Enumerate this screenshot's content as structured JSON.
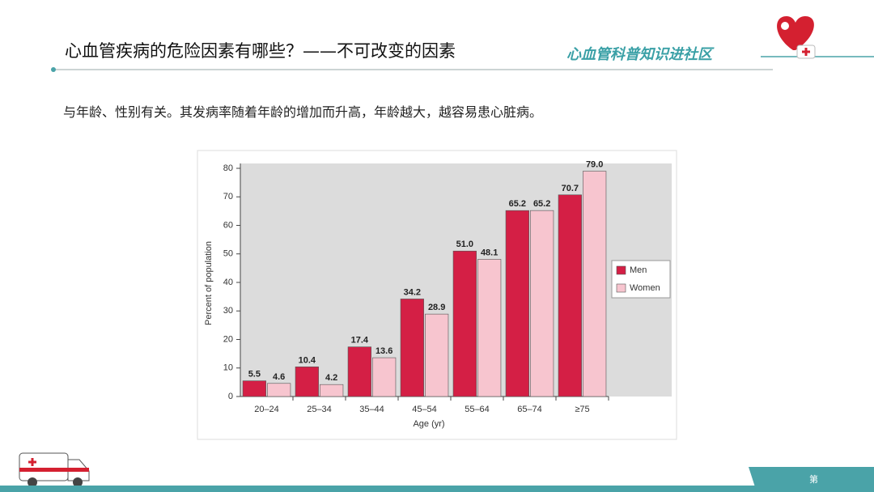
{
  "slide": {
    "title": "心血管疾病的危险因素有哪些？——不可改变的因素",
    "banner": "心血管科普知识进社区",
    "text": "与年龄、性别有关。其发病率随着年龄的增加而升高，年龄越大，越容易患心脏病。",
    "footer": "第"
  },
  "chart_data": {
    "type": "bar",
    "x_label": "Age (yr)",
    "y_label": "Percent of population",
    "categories": [
      "20–24",
      "25–34",
      "35–44",
      "45–54",
      "55–64",
      "65–74",
      "≥75"
    ],
    "series": [
      {
        "name": "Men",
        "color": "#d41f45",
        "values": [
          5.5,
          10.4,
          17.4,
          34.2,
          51.0,
          65.2,
          70.7
        ],
        "value_labels": [
          "5.5",
          "10.4",
          "17.4",
          "34.2",
          "51.0",
          "65.2",
          "70.7"
        ]
      },
      {
        "name": "Women",
        "color": "#f7c5cf",
        "values": [
          4.6,
          4.2,
          13.6,
          28.9,
          48.1,
          65.2,
          79.0
        ],
        "value_labels": [
          "4.6",
          "4.2",
          "13.6",
          "28.9",
          "48.1",
          "65.2",
          "79.0"
        ]
      }
    ],
    "ylim": [
      0,
      80
    ],
    "yticks": [
      0,
      10,
      20,
      30,
      40,
      50,
      60,
      70,
      80
    ],
    "legend": "right"
  }
}
